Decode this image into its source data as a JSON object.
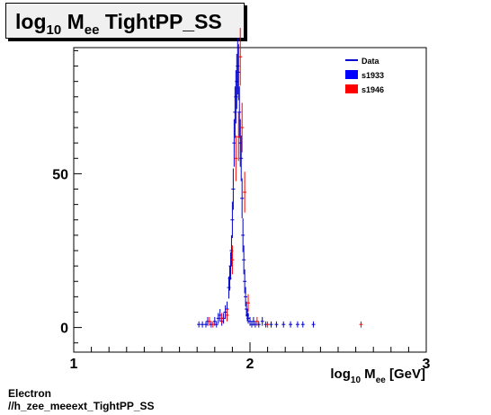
{
  "title": {
    "main": "log",
    "sub": "10",
    "rest1": " M",
    "sub2": "ee",
    "rest2": " TightPP_SS"
  },
  "footer": {
    "line1": "Electron",
    "line2": "//h_zee_meeext_TightPP_SS"
  },
  "chart_data": {
    "type": "scatter",
    "title": "log10 Mee TightPP_SS",
    "xlabel": "log10 Mee [GeV]",
    "ylabel": "",
    "xlim": [
      1,
      3
    ],
    "ylim": [
      -8,
      91
    ],
    "x_ticks": [
      1,
      2,
      3
    ],
    "x_tick_labels": [
      "1",
      "2",
      "3"
    ],
    "y_ticks": [
      0,
      50
    ],
    "y_tick_labels": [
      "0",
      "50"
    ],
    "grid": false,
    "legend_position": "top-right",
    "legend": [
      {
        "name": "Data",
        "style": "line",
        "color": "#0000cc"
      },
      {
        "name": "s1933",
        "style": "box",
        "color": "#0000ff"
      },
      {
        "name": "s1946",
        "style": "box",
        "color": "#ff0000"
      }
    ],
    "series": [
      {
        "name": "s1933",
        "color": "#0000cc",
        "x": [
          1.71,
          1.73,
          1.75,
          1.76,
          1.78,
          1.8,
          1.81,
          1.82,
          1.83,
          1.84,
          1.85,
          1.86,
          1.87,
          1.88,
          1.885,
          1.89,
          1.895,
          1.9,
          1.905,
          1.91,
          1.915,
          1.92,
          1.925,
          1.93,
          1.935,
          1.94,
          1.945,
          1.95,
          1.955,
          1.96,
          1.965,
          1.97,
          1.975,
          1.98,
          1.985,
          1.99,
          2.0,
          2.01,
          2.02,
          2.03,
          2.05,
          2.07,
          2.09,
          2.12,
          2.15,
          2.19,
          2.23,
          2.27,
          2.3,
          2.36
        ],
        "y": [
          1,
          1,
          1,
          2,
          1,
          2,
          1,
          3,
          4,
          2,
          3,
          5,
          6,
          13,
          16,
          20,
          25,
          35,
          45,
          60,
          70,
          75,
          80,
          85,
          83,
          70,
          60,
          55,
          42,
          30,
          22,
          15,
          10,
          6,
          4,
          3,
          2,
          1,
          2,
          1,
          1,
          2,
          1,
          1,
          1,
          1,
          1,
          1,
          1,
          1
        ]
      },
      {
        "name": "s1946",
        "color": "#ff0000",
        "x": [
          1.77,
          1.79,
          1.84,
          1.87,
          1.9,
          1.92,
          1.935,
          1.945,
          1.955,
          1.97,
          1.99,
          2.04,
          2.1,
          2.63
        ],
        "y": [
          2,
          1,
          3,
          4,
          22,
          55,
          62,
          88,
          65,
          44,
          8,
          2,
          1,
          1
        ]
      }
    ]
  }
}
